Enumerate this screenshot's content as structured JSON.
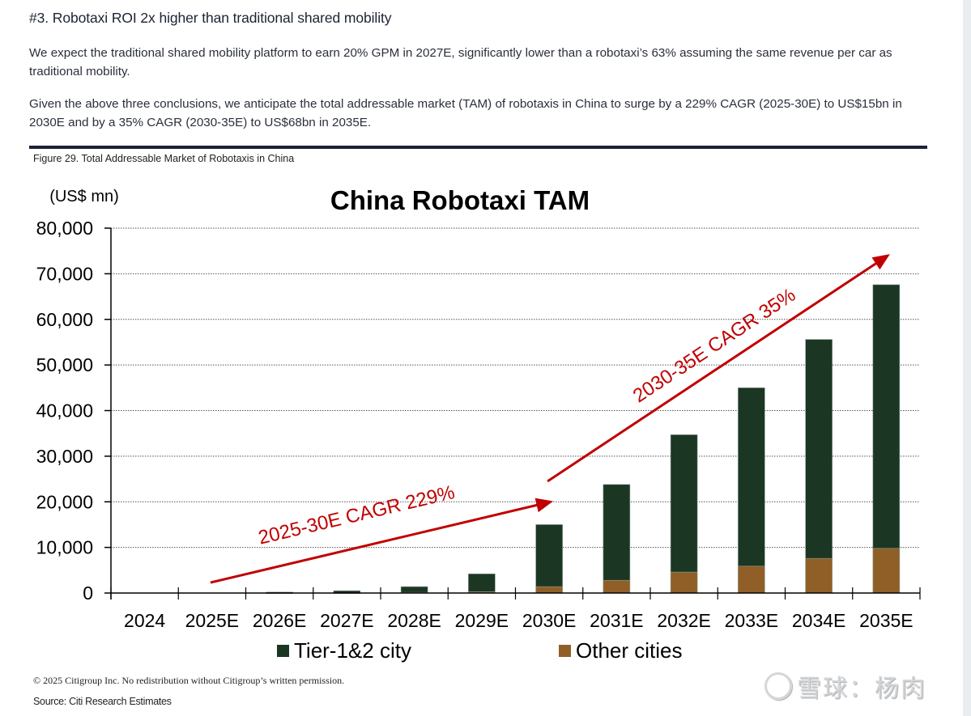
{
  "page": {
    "heading": "#3. Robotaxi ROI 2x higher than traditional shared mobility",
    "paragraphs": [
      "We expect the traditional shared mobility platform to earn 20% GPM in 2027E, significantly lower than a robotaxi’s 63% assuming the same revenue per car as traditional mobility.",
      "Given the above three conclusions, we anticipate the total addressable market (TAM) of robotaxis in China to surge by a 229% CAGR (2025-30E) to US$15bn in 2030E and by a 35% CAGR (2030-35E) to US$68bn in 2035E."
    ],
    "figure_title": "Figure 29. Total Addressable Market of Robotaxis in China",
    "footer_copyright": "© 2025 Citigroup Inc. No redistribution without Citigroup’s written permission.",
    "footer_source": "Source: Citi Research Estimates",
    "watermark": "雪球：杨肉"
  },
  "chart_data": {
    "type": "bar",
    "stacked": true,
    "title": "China Robotaxi TAM",
    "ylabel": "(US$ mn)",
    "xlabel": "",
    "ylim": [
      0,
      80000
    ],
    "yticks": [
      0,
      10000,
      20000,
      30000,
      40000,
      50000,
      60000,
      70000,
      80000
    ],
    "ytick_labels": [
      "0",
      "10,000",
      "20,000",
      "30,000",
      "40,000",
      "50,000",
      "60,000",
      "70,000",
      "80,000"
    ],
    "grid": true,
    "legend_position": "bottom",
    "categories": [
      "2024",
      "2025E",
      "2026E",
      "2027E",
      "2028E",
      "2029E",
      "2030E",
      "2031E",
      "2032E",
      "2033E",
      "2034E",
      "2035E"
    ],
    "series": [
      {
        "name": "Other cities",
        "color": "#8f5f27",
        "values": [
          0,
          0,
          20,
          50,
          150,
          300,
          1400,
          2800,
          4600,
          5900,
          7600,
          9800
        ]
      },
      {
        "name": "Tier-1&2 city",
        "color": "#1c3624",
        "values": [
          0,
          0,
          180,
          450,
          1250,
          3900,
          13600,
          21000,
          30100,
          39100,
          48000,
          57800
        ]
      }
    ],
    "legend": [
      {
        "name": "Tier-1&2 city",
        "color": "#1c3624"
      },
      {
        "name": "Other cities",
        "color": "#8f5f27"
      }
    ],
    "annotations": [
      {
        "text": "2025-30E CAGR 229%",
        "color": "#c00000",
        "from": [
          "2025E",
          2300
        ],
        "to": [
          "2030E",
          20000
        ]
      },
      {
        "text": "2030-35E CAGR 35%",
        "color": "#c00000",
        "from": [
          "2030E",
          24500
        ],
        "to": [
          "2035E",
          74000
        ]
      }
    ]
  }
}
